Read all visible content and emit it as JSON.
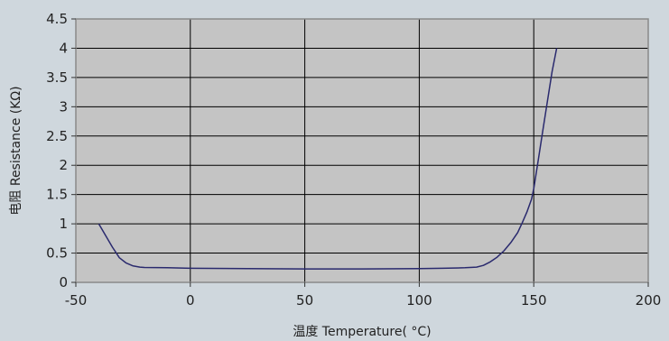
{
  "chart_data": {
    "type": "line",
    "title": "",
    "xlabel": "温度  Temperature( °C)",
    "ylabel": "电阻  Resistance (KΩ)",
    "xlim": [
      -50,
      200
    ],
    "ylim": [
      0,
      4.5
    ],
    "x_ticks": [
      -50,
      0,
      50,
      100,
      150,
      200
    ],
    "y_ticks": [
      0,
      0.5,
      1,
      1.5,
      2,
      2.5,
      3,
      3.5,
      4,
      4.5
    ],
    "x_tick_labels": [
      "-50",
      "0",
      "50",
      "100",
      "150",
      "200"
    ],
    "y_tick_labels": [
      "0",
      "0.5",
      "1",
      "1.5",
      "2",
      "2.5",
      "3",
      "3.5",
      "4",
      "4.5"
    ],
    "grid": true,
    "colors": {
      "background": "#cfd7dd",
      "plot_background": "#c4c4c4",
      "grid": "#000000",
      "line": "#2a2a6e",
      "frame": "#8a8a8a"
    },
    "series": [
      {
        "x": [
          -40,
          -37,
          -34,
          -31,
          -28,
          -25,
          -22,
          -20,
          -10,
          0,
          25,
          50,
          75,
          100,
          110,
          120,
          125,
          128,
          131,
          134,
          137,
          140,
          143,
          145,
          147,
          149,
          150,
          152,
          154,
          156,
          158,
          160
        ],
        "y": [
          1.0,
          0.8,
          0.6,
          0.42,
          0.33,
          0.28,
          0.26,
          0.255,
          0.25,
          0.24,
          0.235,
          0.23,
          0.23,
          0.235,
          0.24,
          0.25,
          0.26,
          0.29,
          0.35,
          0.43,
          0.54,
          0.68,
          0.85,
          1.02,
          1.2,
          1.42,
          1.6,
          2.1,
          2.6,
          3.1,
          3.6,
          4.0
        ]
      }
    ]
  }
}
